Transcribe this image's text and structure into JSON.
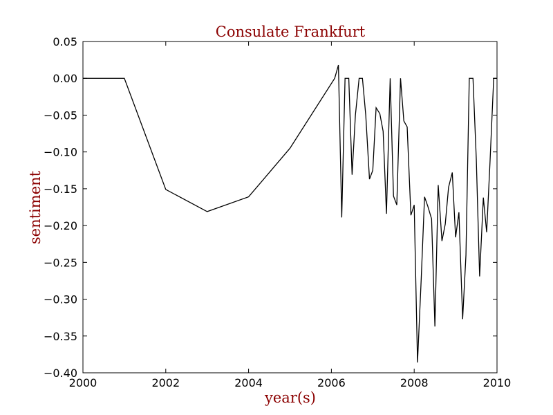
{
  "chart_data": {
    "type": "line",
    "title": "Consulate Frankfurt",
    "xlabel": "year(s)",
    "ylabel": "sentiment",
    "xlim": [
      2000,
      2010
    ],
    "ylim": [
      -0.4,
      0.05
    ],
    "xticks": [
      "2000",
      "2002",
      "2004",
      "2006",
      "2008",
      "2010"
    ],
    "yticks": [
      "0.05",
      "0.00",
      "−0.05",
      "−0.10",
      "−0.15",
      "−0.20",
      "−0.25",
      "−0.30",
      "−0.35",
      "−0.40"
    ],
    "grid": false,
    "line_color": "#000000",
    "title_color": "#8b0000",
    "series": [
      {
        "x": [
          2000.0,
          2001.0,
          2002.0,
          2003.0,
          2004.0,
          2005.0,
          2006.08,
          2006.17,
          2006.25,
          2006.33,
          2006.42,
          2006.5,
          2006.58,
          2006.67,
          2006.75,
          2006.83,
          2006.92,
          2007.0,
          2007.08,
          2007.17,
          2007.25,
          2007.33,
          2007.42,
          2007.5,
          2007.58,
          2007.67,
          2007.75,
          2007.83,
          2007.92,
          2008.0,
          2008.08,
          2008.17,
          2008.25,
          2008.33,
          2008.42,
          2008.5,
          2008.58,
          2008.67,
          2008.75,
          2008.83,
          2008.92,
          2009.0,
          2009.08,
          2009.17,
          2009.25,
          2009.33,
          2009.42,
          2009.5,
          2009.58,
          2009.67,
          2009.75,
          2009.83,
          2009.92,
          2010.0
        ],
        "y": [
          0.0,
          0.0,
          -0.151,
          -0.181,
          -0.161,
          -0.095,
          0.0,
          0.018,
          -0.189,
          0.0,
          0.0,
          -0.131,
          -0.05,
          0.0,
          0.0,
          -0.05,
          -0.137,
          -0.125,
          -0.04,
          -0.048,
          -0.072,
          -0.184,
          0.0,
          -0.16,
          -0.172,
          0.0,
          -0.058,
          -0.066,
          -0.186,
          -0.172,
          -0.386,
          -0.272,
          -0.161,
          -0.174,
          -0.191,
          -0.337,
          -0.145,
          -0.221,
          -0.198,
          -0.148,
          -0.128,
          -0.216,
          -0.182,
          -0.327,
          -0.24,
          0.0,
          0.0,
          -0.11,
          -0.269,
          -0.162,
          -0.209,
          -0.115,
          0.0,
          0.0
        ]
      }
    ]
  }
}
